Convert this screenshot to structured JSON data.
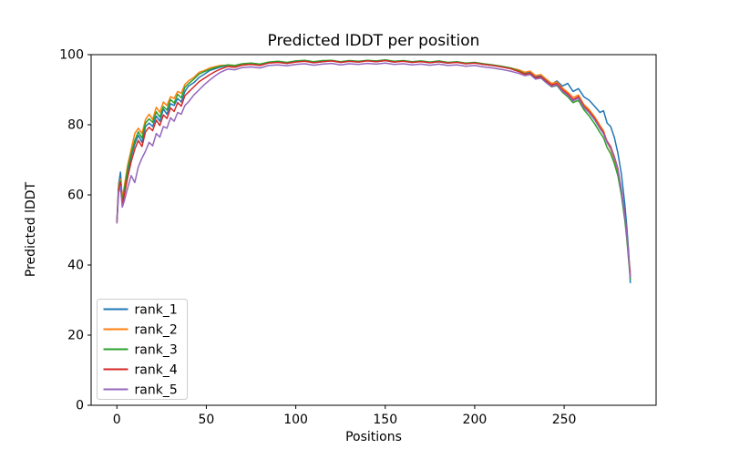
{
  "figure": {
    "background": "#ffffff",
    "axes_color": "#000000"
  },
  "chart_data": {
    "type": "line",
    "title": "Predicted lDDT per position",
    "xlabel": "Positions",
    "ylabel": "Predicted lDDT",
    "xlim": [
      -14.4,
      301.4
    ],
    "ylim": [
      0,
      100
    ],
    "x_ticks": [
      0,
      50,
      100,
      150,
      200,
      250
    ],
    "y_ticks": [
      0,
      20,
      40,
      60,
      80,
      100
    ],
    "grid": false,
    "legend_position": "lower left",
    "x": [
      0,
      1,
      2,
      3,
      4,
      6,
      8,
      10,
      12,
      14,
      16,
      18,
      20,
      22,
      24,
      26,
      28,
      30,
      32,
      34,
      36,
      38,
      40,
      43,
      46,
      49,
      52,
      55,
      58,
      62,
      66,
      70,
      75,
      80,
      85,
      90,
      95,
      100,
      105,
      110,
      115,
      120,
      125,
      130,
      135,
      140,
      145,
      150,
      155,
      160,
      165,
      170,
      175,
      180,
      185,
      190,
      195,
      200,
      205,
      210,
      215,
      220,
      225,
      228,
      231,
      234,
      237,
      240,
      243,
      246,
      249,
      252,
      255,
      258,
      261,
      264,
      267,
      270,
      272,
      274,
      276,
      278,
      280,
      282,
      284,
      285,
      286,
      287
    ],
    "series": [
      {
        "name": "rank_1",
        "color": "#1f77b4",
        "values": [
          52.5,
          63.0,
          66.5,
          58.5,
          60.5,
          66.5,
          71.0,
          74.5,
          77.0,
          75.0,
          79.5,
          80.5,
          79.5,
          82.5,
          81.0,
          84.5,
          83.0,
          86.0,
          85.5,
          87.5,
          86.5,
          89.5,
          91.0,
          92.0,
          93.5,
          94.5,
          95.5,
          96.0,
          96.5,
          96.9,
          96.6,
          97.2,
          97.4,
          97.0,
          97.7,
          97.9,
          97.5,
          98.0,
          98.2,
          97.7,
          98.0,
          98.3,
          97.8,
          98.1,
          97.9,
          98.3,
          98.0,
          98.3,
          97.9,
          98.2,
          97.8,
          98.1,
          97.7,
          98.0,
          97.6,
          97.9,
          97.4,
          97.7,
          97.2,
          96.9,
          96.6,
          96.1,
          95.3,
          94.7,
          95.0,
          93.7,
          94.0,
          92.7,
          91.6,
          92.5,
          91.0,
          91.8,
          89.5,
          90.3,
          88.0,
          87.0,
          85.3,
          83.5,
          84.0,
          80.5,
          79.5,
          76.5,
          72.0,
          66.0,
          57.0,
          51.0,
          44.0,
          35.0
        ]
      },
      {
        "name": "rank_2",
        "color": "#ff7f0e",
        "values": [
          52.0,
          62.5,
          64.5,
          59.0,
          62.0,
          68.5,
          73.0,
          77.5,
          79.0,
          77.5,
          81.5,
          83.0,
          81.5,
          85.0,
          83.5,
          86.5,
          85.5,
          88.0,
          87.5,
          89.5,
          89.0,
          91.5,
          92.5,
          93.5,
          95.0,
          95.5,
          96.2,
          96.6,
          96.9,
          97.0,
          96.8,
          97.3,
          97.4,
          97.2,
          97.7,
          98.0,
          97.6,
          98.0,
          98.2,
          97.8,
          98.1,
          98.2,
          97.9,
          98.2,
          98.0,
          98.3,
          98.1,
          98.4,
          98.0,
          98.2,
          97.9,
          98.1,
          97.8,
          98.1,
          97.7,
          97.9,
          97.5,
          97.7,
          97.3,
          97.0,
          96.6,
          96.2,
          95.6,
          95.0,
          95.3,
          94.0,
          94.3,
          93.0,
          91.8,
          92.2,
          90.5,
          89.3,
          87.8,
          88.5,
          85.8,
          84.3,
          82.3,
          79.8,
          78.3,
          75.0,
          73.0,
          70.0,
          66.5,
          61.0,
          53.5,
          48.5,
          42.5,
          38.0
        ]
      },
      {
        "name": "rank_3",
        "color": "#2ca02c",
        "values": [
          52.8,
          62.0,
          64.0,
          58.0,
          61.0,
          67.5,
          71.8,
          75.5,
          78.0,
          76.2,
          80.5,
          81.7,
          80.7,
          83.7,
          82.2,
          85.2,
          84.2,
          87.2,
          86.2,
          88.7,
          87.7,
          90.7,
          91.7,
          93.0,
          94.5,
          95.2,
          95.8,
          96.3,
          96.7,
          97.1,
          96.9,
          97.4,
          97.6,
          97.3,
          97.9,
          98.1,
          97.8,
          98.2,
          98.4,
          98.0,
          98.3,
          98.4,
          98.0,
          98.3,
          98.1,
          98.4,
          98.2,
          98.5,
          98.1,
          98.3,
          98.0,
          98.2,
          97.9,
          98.2,
          97.8,
          98.0,
          97.6,
          97.8,
          97.4,
          97.1,
          96.7,
          96.2,
          95.3,
          94.5,
          94.7,
          93.2,
          93.4,
          92.0,
          90.8,
          91.2,
          89.3,
          88.0,
          86.3,
          87.0,
          84.3,
          82.5,
          80.3,
          77.8,
          76.3,
          73.5,
          71.8,
          69.0,
          65.5,
          60.0,
          52.5,
          47.5,
          41.5,
          36.0
        ]
      },
      {
        "name": "rank_4",
        "color": "#d62728",
        "values": [
          52.2,
          61.5,
          63.5,
          57.5,
          59.5,
          65.0,
          69.5,
          73.0,
          75.5,
          73.8,
          78.0,
          79.3,
          78.3,
          81.3,
          79.8,
          82.8,
          81.8,
          84.8,
          83.8,
          86.3,
          85.3,
          88.3,
          89.3,
          90.8,
          92.3,
          93.3,
          94.3,
          95.2,
          95.9,
          96.6,
          96.4,
          97.0,
          97.2,
          96.9,
          97.6,
          97.8,
          97.5,
          97.9,
          98.1,
          97.7,
          98.0,
          98.2,
          97.8,
          98.1,
          97.9,
          98.2,
          98.0,
          98.3,
          97.9,
          98.1,
          97.8,
          98.0,
          97.7,
          98.0,
          97.6,
          97.8,
          97.4,
          97.6,
          97.2,
          96.9,
          96.5,
          96.0,
          95.1,
          94.4,
          94.7,
          93.4,
          93.7,
          92.4,
          91.3,
          91.8,
          90.0,
          88.8,
          87.2,
          88.0,
          85.3,
          83.8,
          81.8,
          79.3,
          77.8,
          75.3,
          73.8,
          71.0,
          67.5,
          61.5,
          54.0,
          49.0,
          43.0,
          37.0
        ]
      },
      {
        "name": "rank_5",
        "color": "#9467bd",
        "values": [
          52.0,
          60.5,
          62.5,
          56.5,
          58.0,
          62.0,
          65.5,
          63.5,
          68.0,
          70.5,
          72.5,
          75.0,
          74.0,
          77.5,
          76.5,
          79.5,
          79.0,
          82.0,
          81.0,
          83.5,
          83.0,
          85.5,
          86.5,
          88.5,
          90.0,
          91.5,
          92.8,
          94.0,
          95.0,
          95.9,
          95.7,
          96.3,
          96.5,
          96.2,
          96.9,
          97.1,
          96.8,
          97.2,
          97.4,
          97.0,
          97.3,
          97.5,
          97.1,
          97.4,
          97.2,
          97.5,
          97.3,
          97.6,
          97.2,
          97.4,
          97.1,
          97.3,
          97.0,
          97.3,
          96.9,
          97.1,
          96.7,
          96.9,
          96.5,
          96.2,
          95.8,
          95.3,
          94.6,
          94.0,
          94.3,
          93.0,
          93.3,
          92.0,
          90.9,
          91.4,
          89.6,
          88.4,
          86.8,
          87.6,
          84.9,
          83.4,
          81.4,
          78.9,
          77.4,
          74.9,
          73.4,
          70.7,
          67.2,
          61.2,
          53.7,
          48.7,
          42.7,
          36.5
        ]
      }
    ]
  }
}
